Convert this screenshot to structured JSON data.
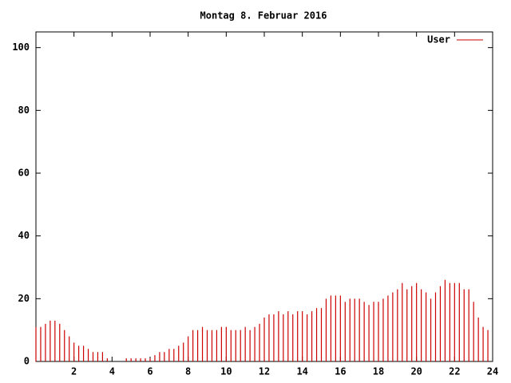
{
  "chart_data": {
    "type": "impulse",
    "title": "Montag 8. Februar 2016",
    "x": [
      0,
      0.25,
      0.5,
      0.75,
      1,
      1.25,
      1.5,
      1.75,
      2,
      2.25,
      2.5,
      2.75,
      3,
      3.25,
      3.5,
      3.75,
      4,
      4.25,
      4.5,
      4.75,
      5,
      5.25,
      5.5,
      5.75,
      6,
      6.25,
      6.5,
      6.75,
      7,
      7.25,
      7.5,
      7.75,
      8,
      8.25,
      8.5,
      8.75,
      9,
      9.25,
      9.5,
      9.75,
      10,
      10.25,
      10.5,
      10.75,
      11,
      11.25,
      11.5,
      11.75,
      12,
      12.25,
      12.5,
      12.75,
      13,
      13.25,
      13.5,
      13.75,
      14,
      14.25,
      14.5,
      14.75,
      15,
      15.25,
      15.5,
      15.75,
      16,
      16.25,
      16.5,
      16.75,
      17,
      17.25,
      17.5,
      17.75,
      18,
      18.25,
      18.5,
      18.75,
      19,
      19.25,
      19.5,
      19.75,
      20,
      20.25,
      20.5,
      20.75,
      21,
      21.25,
      21.5,
      21.75,
      22,
      22.25,
      22.5,
      22.75,
      23,
      23.25,
      23.5,
      23.75
    ],
    "series": [
      {
        "name": "User",
        "color": "#cc0000",
        "values": [
          11,
          11,
          12,
          13,
          13,
          12,
          10,
          8,
          6,
          5,
          5,
          4,
          3,
          3,
          3,
          1,
          0,
          0,
          0,
          1,
          1,
          1,
          1,
          1,
          1,
          2,
          3,
          3,
          4,
          4,
          5,
          6,
          8,
          10,
          10,
          11,
          10,
          10,
          10,
          11,
          11,
          10,
          10,
          10,
          11,
          10,
          11,
          12,
          14,
          15,
          15,
          16,
          15,
          16,
          15,
          16,
          16,
          15,
          16,
          17,
          17,
          20,
          21,
          21,
          21,
          19,
          20,
          20,
          20,
          19,
          18,
          19,
          19,
          20,
          21,
          22,
          23,
          25,
          23,
          24,
          25,
          23,
          22,
          20,
          22,
          24,
          26,
          25,
          25,
          25,
          23,
          23,
          19,
          14,
          11,
          10
        ]
      }
    ],
    "xlim": [
      0,
      24
    ],
    "ylim": [
      0,
      105
    ],
    "xticks": [
      2,
      4,
      6,
      8,
      10,
      12,
      14,
      16,
      18,
      20,
      22,
      24
    ],
    "yticks": [
      0,
      20,
      40,
      60,
      80,
      100
    ],
    "legend": "top-right"
  }
}
